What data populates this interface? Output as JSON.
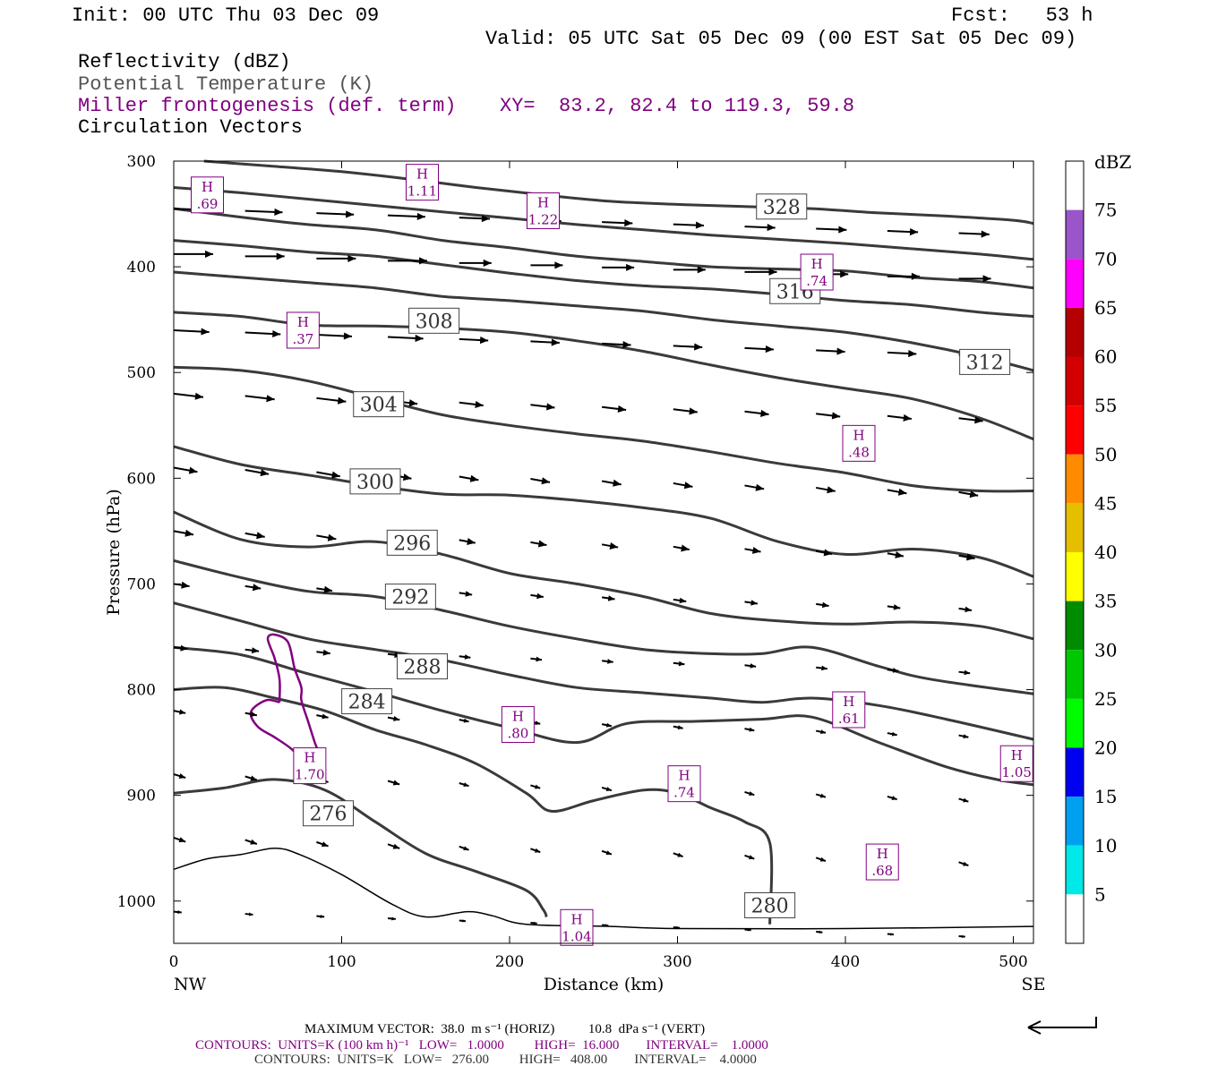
{
  "header": {
    "init": "Init: 00 UTC Thu 03 Dec 09",
    "fcst": "Fcst:   53 h",
    "valid": "Valid: 05 UTC Sat 05 Dec 09 (00 EST Sat 05 Dec 09)",
    "fields": [
      {
        "text": "Reflectivity (dBZ)",
        "color": "#000000"
      },
      {
        "text": "Potential Temperature (K)",
        "color": "#555555"
      },
      {
        "text": "Miller frontogenesis (def. term)",
        "color": "#800080"
      },
      {
        "text": "Circulation Vectors",
        "color": "#000000"
      }
    ],
    "xy": "XY=  83.2, 82.4 to 119.3, 59.8"
  },
  "chart_data": {
    "type": "line",
    "xlabel": "Distance (km)",
    "ylabel": "Pressure (hPa)",
    "xlim": [
      0,
      512
    ],
    "ylim": [
      1040,
      300
    ],
    "x_ticks": [
      0,
      100,
      200,
      300,
      400,
      500
    ],
    "y_ticks": [
      300,
      400,
      500,
      600,
      700,
      800,
      900,
      1000
    ],
    "x_end_labels": {
      "left": "NW",
      "right": "SE"
    },
    "theta_contours": [
      {
        "label": "276",
        "points": [
          [
            0,
            898
          ],
          [
            30,
            893
          ],
          [
            60,
            885
          ],
          [
            90,
            895
          ],
          [
            120,
            925
          ],
          [
            150,
            955
          ],
          [
            180,
            972
          ],
          [
            210,
            990
          ],
          [
            220,
            1008
          ],
          [
            222,
            1015
          ]
        ],
        "label_at": [
          92,
          917
        ]
      },
      {
        "label": "280",
        "points": [
          [
            0,
            800
          ],
          [
            30,
            798
          ],
          [
            60,
            808
          ],
          [
            90,
            820
          ],
          [
            120,
            838
          ],
          [
            150,
            852
          ],
          [
            180,
            870
          ],
          [
            210,
            898
          ],
          [
            225,
            915
          ],
          [
            250,
            905
          ],
          [
            280,
            895
          ],
          [
            300,
            898
          ],
          [
            320,
            912
          ],
          [
            340,
            925
          ],
          [
            355,
            945
          ],
          [
            355,
            1022
          ]
        ],
        "label_at": [
          355,
          1004
        ]
      },
      {
        "label": "284",
        "points": [
          [
            0,
            760
          ],
          [
            40,
            767
          ],
          [
            80,
            785
          ],
          [
            120,
            802
          ],
          [
            160,
            820
          ],
          [
            200,
            836
          ],
          [
            240,
            850
          ],
          [
            270,
            832
          ],
          [
            310,
            830
          ],
          [
            350,
            828
          ],
          [
            380,
            826
          ],
          [
            420,
            850
          ],
          [
            460,
            873
          ],
          [
            490,
            885
          ],
          [
            512,
            890
          ]
        ],
        "label_at": [
          115,
          811
        ]
      },
      {
        "label": "288",
        "points": [
          [
            0,
            718
          ],
          [
            40,
            735
          ],
          [
            80,
            752
          ],
          [
            120,
            762
          ],
          [
            160,
            772
          ],
          [
            200,
            786
          ],
          [
            240,
            798
          ],
          [
            280,
            803
          ],
          [
            320,
            808
          ],
          [
            350,
            812
          ],
          [
            380,
            808
          ],
          [
            420,
            815
          ],
          [
            460,
            828
          ],
          [
            512,
            847
          ]
        ],
        "label_at": [
          148,
          778
        ]
      },
      {
        "label": "292",
        "points": [
          [
            0,
            678
          ],
          [
            40,
            694
          ],
          [
            80,
            707
          ],
          [
            120,
            712
          ],
          [
            160,
            725
          ],
          [
            200,
            740
          ],
          [
            240,
            752
          ],
          [
            280,
            762
          ],
          [
            320,
            766
          ],
          [
            350,
            766
          ],
          [
            380,
            760
          ],
          [
            420,
            778
          ],
          [
            450,
            790
          ],
          [
            512,
            804
          ]
        ],
        "label_at": [
          141,
          712
        ]
      },
      {
        "label": "296",
        "points": [
          [
            0,
            632
          ],
          [
            40,
            658
          ],
          [
            80,
            665
          ],
          [
            120,
            660
          ],
          [
            160,
            672
          ],
          [
            200,
            690
          ],
          [
            240,
            700
          ],
          [
            280,
            712
          ],
          [
            320,
            728
          ],
          [
            360,
            735
          ],
          [
            400,
            738
          ],
          [
            440,
            736
          ],
          [
            480,
            740
          ],
          [
            512,
            752
          ]
        ],
        "label_at": [
          142,
          661
        ]
      },
      {
        "label": "300",
        "points": [
          [
            0,
            570
          ],
          [
            40,
            587
          ],
          [
            80,
            597
          ],
          [
            120,
            607
          ],
          [
            160,
            615
          ],
          [
            200,
            616
          ],
          [
            240,
            621
          ],
          [
            280,
            628
          ],
          [
            320,
            638
          ],
          [
            360,
            660
          ],
          [
            400,
            672
          ],
          [
            440,
            667
          ],
          [
            480,
            675
          ],
          [
            512,
            693
          ]
        ],
        "label_at": [
          120,
          603
        ]
      },
      {
        "label": "304",
        "points": [
          [
            0,
            495
          ],
          [
            40,
            498
          ],
          [
            80,
            508
          ],
          [
            120,
            524
          ],
          [
            160,
            540
          ],
          [
            200,
            550
          ],
          [
            240,
            558
          ],
          [
            280,
            565
          ],
          [
            320,
            575
          ],
          [
            360,
            586
          ],
          [
            400,
            595
          ],
          [
            440,
            607
          ],
          [
            480,
            612
          ],
          [
            512,
            612
          ]
        ],
        "label_at": [
          122,
          530
        ]
      },
      {
        "label": "308",
        "points": [
          [
            0,
            443
          ],
          [
            40,
            447
          ],
          [
            80,
            455
          ],
          [
            120,
            456
          ],
          [
            160,
            458
          ],
          [
            200,
            462
          ],
          [
            240,
            470
          ],
          [
            280,
            480
          ],
          [
            320,
            493
          ],
          [
            360,
            505
          ],
          [
            400,
            515
          ],
          [
            440,
            525
          ],
          [
            480,
            543
          ],
          [
            512,
            563
          ]
        ],
        "label_at": [
          155,
          451
        ]
      },
      {
        "label": "312",
        "points": [
          [
            0,
            405
          ],
          [
            40,
            410
          ],
          [
            80,
            415
          ],
          [
            120,
            420
          ],
          [
            160,
            428
          ],
          [
            200,
            432
          ],
          [
            240,
            437
          ],
          [
            280,
            442
          ],
          [
            320,
            450
          ],
          [
            360,
            456
          ],
          [
            400,
            462
          ],
          [
            440,
            472
          ],
          [
            480,
            485
          ],
          [
            512,
            498
          ]
        ],
        "label_at": [
          483,
          490
        ]
      },
      {
        "label": "316",
        "points": [
          [
            0,
            375
          ],
          [
            40,
            380
          ],
          [
            80,
            386
          ],
          [
            120,
            390
          ],
          [
            160,
            398
          ],
          [
            200,
            406
          ],
          [
            240,
            413
          ],
          [
            280,
            418
          ],
          [
            320,
            421
          ],
          [
            360,
            426
          ],
          [
            400,
            432
          ],
          [
            440,
            436
          ],
          [
            480,
            443
          ],
          [
            512,
            447
          ]
        ],
        "label_at": [
          370,
          423
        ]
      },
      {
        "label": "",
        "points": [
          [
            0,
            345
          ],
          [
            40,
            353
          ],
          [
            80,
            360
          ],
          [
            120,
            365
          ],
          [
            160,
            375
          ],
          [
            200,
            382
          ],
          [
            240,
            390
          ],
          [
            280,
            395
          ],
          [
            320,
            400
          ],
          [
            360,
            402
          ],
          [
            400,
            404
          ],
          [
            440,
            410
          ],
          [
            480,
            414
          ],
          [
            512,
            420
          ]
        ],
        "label_at": null
      },
      {
        "label": "",
        "points": [
          [
            0,
            325
          ],
          [
            40,
            330
          ],
          [
            80,
            336
          ],
          [
            120,
            342
          ],
          [
            160,
            348
          ],
          [
            200,
            354
          ],
          [
            240,
            360
          ],
          [
            280,
            365
          ],
          [
            320,
            370
          ],
          [
            360,
            374
          ],
          [
            400,
            378
          ],
          [
            440,
            383
          ],
          [
            480,
            388
          ],
          [
            512,
            393
          ]
        ],
        "label_at": null
      },
      {
        "label": "328",
        "points": [
          [
            18,
            300
          ],
          [
            60,
            305
          ],
          [
            100,
            310
          ],
          [
            140,
            317
          ],
          [
            180,
            325
          ],
          [
            220,
            332
          ],
          [
            260,
            338
          ],
          [
            300,
            341
          ],
          [
            340,
            343
          ],
          [
            380,
            345
          ],
          [
            420,
            349
          ],
          [
            460,
            352
          ],
          [
            500,
            356
          ],
          [
            512,
            359
          ]
        ],
        "label_at": [
          362,
          343
        ]
      }
    ],
    "thin_contour": [
      [
        0,
        970
      ],
      [
        20,
        960
      ],
      [
        40,
        956
      ],
      [
        60,
        950
      ],
      [
        75,
        956
      ],
      [
        100,
        975
      ],
      [
        130,
        1003
      ],
      [
        150,
        1015
      ],
      [
        175,
        1010
      ],
      [
        190,
        1014
      ],
      [
        210,
        1022
      ],
      [
        260,
        1024
      ],
      [
        300,
        1026
      ],
      [
        400,
        1026
      ],
      [
        512,
        1024
      ]
    ],
    "frontogenesis_contour": [
      [
        63,
        812
      ],
      [
        55,
        810
      ],
      [
        46,
        821
      ],
      [
        50,
        835
      ],
      [
        60,
        845
      ],
      [
        70,
        856
      ],
      [
        78,
        870
      ],
      [
        80,
        880
      ],
      [
        84,
        880
      ],
      [
        88,
        868
      ],
      [
        84,
        850
      ],
      [
        80,
        830
      ],
      [
        76,
        810
      ],
      [
        76,
        798
      ],
      [
        72,
        780
      ],
      [
        68,
        755
      ],
      [
        60,
        748
      ],
      [
        56,
        752
      ],
      [
        60,
        770
      ],
      [
        63,
        790
      ],
      [
        63,
        812
      ]
    ],
    "frontogenesis_maxima": [
      {
        "label": "H",
        "value": ".69",
        "x": 20,
        "y": 332
      },
      {
        "label": "H",
        "value": "1.11",
        "x": 148,
        "y": 320
      },
      {
        "label": "H",
        "value": "1.22",
        "x": 220,
        "y": 347
      },
      {
        "label": "H",
        "value": ".37",
        "x": 77,
        "y": 460
      },
      {
        "label": "H",
        "value": ".74",
        "x": 383,
        "y": 405
      },
      {
        "label": "H",
        "value": ".48",
        "x": 408,
        "y": 567
      },
      {
        "label": "H",
        "value": ".61",
        "x": 402,
        "y": 819
      },
      {
        "label": "H",
        "value": ".80",
        "x": 205,
        "y": 833
      },
      {
        "label": "H",
        "value": "1.70",
        "x": 81,
        "y": 872
      },
      {
        "label": "H",
        "value": ".74",
        "x": 304,
        "y": 889
      },
      {
        "label": "H",
        "value": ".68",
        "x": 422,
        "y": 963
      },
      {
        "label": "H",
        "value": "1.05",
        "x": 502,
        "y": 870
      },
      {
        "label": "H",
        "value": "1.04",
        "x": 240,
        "y": 1025
      }
    ],
    "colorbar": {
      "title": "dBZ",
      "tick_labels": [
        "5",
        "10",
        "15",
        "20",
        "25",
        "30",
        "35",
        "40",
        "45",
        "50",
        "55",
        "60",
        "65",
        "70",
        "75"
      ],
      "colors": [
        "#ffffff",
        "#00e8e8",
        "#00a0f0",
        "#0000f0",
        "#00fc00",
        "#00c800",
        "#008c00",
        "#ffff00",
        "#e6be00",
        "#ff8c00",
        "#ff0000",
        "#d20000",
        "#b40000",
        "#ff00ff",
        "#9955c9",
        "#ffffff"
      ]
    }
  },
  "footer": {
    "max_vector": "MAXIMUM VECTOR:  38.0  m s⁻¹ (HORIZ)          10.8  dPa s⁻¹ (VERT)",
    "contours_purple": "CONTOURS:  UNITS=K (100 km h)⁻¹   LOW=   1.0000         HIGH=  16.000        INTERVAL=    1.0000",
    "contours_black": "CONTOURS:  UNITS=K   LOW=   276.00         HIGH=   408.00        INTERVAL=    4.0000"
  },
  "colors": {
    "theta": "#3a3a3a",
    "frontogenesis": "#800080",
    "vector": "#000000"
  }
}
